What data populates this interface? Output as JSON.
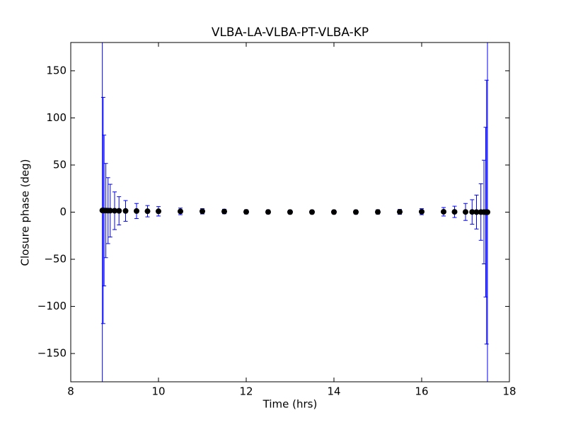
{
  "chart_data": {
    "type": "errorbar",
    "title": "VLBA-LA-VLBA-PT-VLBA-KP",
    "x_label": "Time (hrs)",
    "y_label": "Closure phase (deg)",
    "x": [
      8.72,
      8.74,
      8.76,
      8.8,
      8.85,
      8.9,
      9.0,
      9.1,
      9.25,
      9.5,
      9.75,
      10,
      10.5,
      11,
      11.5,
      12,
      12.5,
      13,
      13.5,
      14,
      14.5,
      15,
      15.5,
      16,
      16.5,
      16.75,
      17,
      17.15,
      17.25,
      17.35,
      17.42,
      17.46,
      17.48,
      17.5
    ],
    "values": [
      1.8,
      1.8,
      1.7,
      1.7,
      1.6,
      1.6,
      1.5,
      1.4,
      1.3,
      1.2,
      1.0,
      0.9,
      0.8,
      0.9,
      0.7,
      0.3,
      0.2,
      0.1,
      0.1,
      0.1,
      0.1,
      0.2,
      0.3,
      0.5,
      0.4,
      0.3,
      0.2,
      0.2,
      0.1,
      0.1,
      0.1,
      0,
      0,
      0
    ],
    "errors": [
      190,
      120,
      80,
      50,
      35,
      28,
      20,
      15,
      11,
      8,
      6,
      5,
      3.5,
      2.8,
      2.4,
      2.2,
      2.1,
      2,
      2,
      2,
      2.1,
      2.3,
      2.6,
      3.2,
      4.5,
      6,
      9,
      13,
      18,
      30,
      55,
      90,
      140,
      190
    ],
    "color": "#0000ff",
    "marker_color": "#000000",
    "xlim": [
      8,
      18
    ],
    "xticks": [
      8,
      10,
      12,
      14,
      16,
      18
    ],
    "ylim": [
      -180,
      180
    ],
    "yticks": [
      {
        "value": -150,
        "label": "−150"
      },
      {
        "value": -100,
        "label": "−100"
      },
      {
        "value": -50,
        "label": "−50"
      },
      0,
      50,
      100,
      150
    ]
  }
}
